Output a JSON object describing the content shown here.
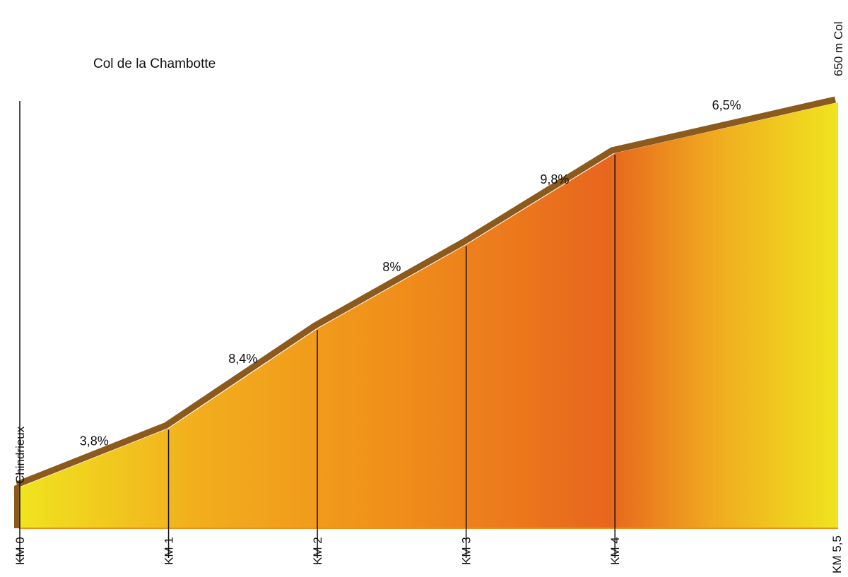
{
  "title": "Col de la Chambotte",
  "chart_data": {
    "type": "area",
    "title": "Col de la Chambotte",
    "start_label": "Chindrieux",
    "summit_label": "650 m Col",
    "km_labels": [
      "KM 0",
      "KM 1",
      "KM 2",
      "KM 3",
      "KM 4",
      "KM 5,5"
    ],
    "km_positions": [
      0,
      1,
      2,
      3,
      4,
      5.5
    ],
    "segments": [
      {
        "from_km": 0,
        "to_km": 1,
        "gradient": "3,8%"
      },
      {
        "from_km": 1,
        "to_km": 2,
        "gradient": "8,4%"
      },
      {
        "from_km": 2,
        "to_km": 3,
        "gradient": "8%"
      },
      {
        "from_km": 3,
        "to_km": 4,
        "gradient": "9,8%"
      },
      {
        "from_km": 4,
        "to_km": 5.5,
        "gradient": "6,5%"
      }
    ],
    "relative_elevation": [
      0,
      0.153,
      0.412,
      0.63,
      0.868,
      1.0
    ],
    "colors": {
      "fill_light": "#f0e41f",
      "fill_mid": "#f0901a",
      "fill_dark": "#e8661e",
      "road_edge": "#8b5a1c"
    }
  }
}
